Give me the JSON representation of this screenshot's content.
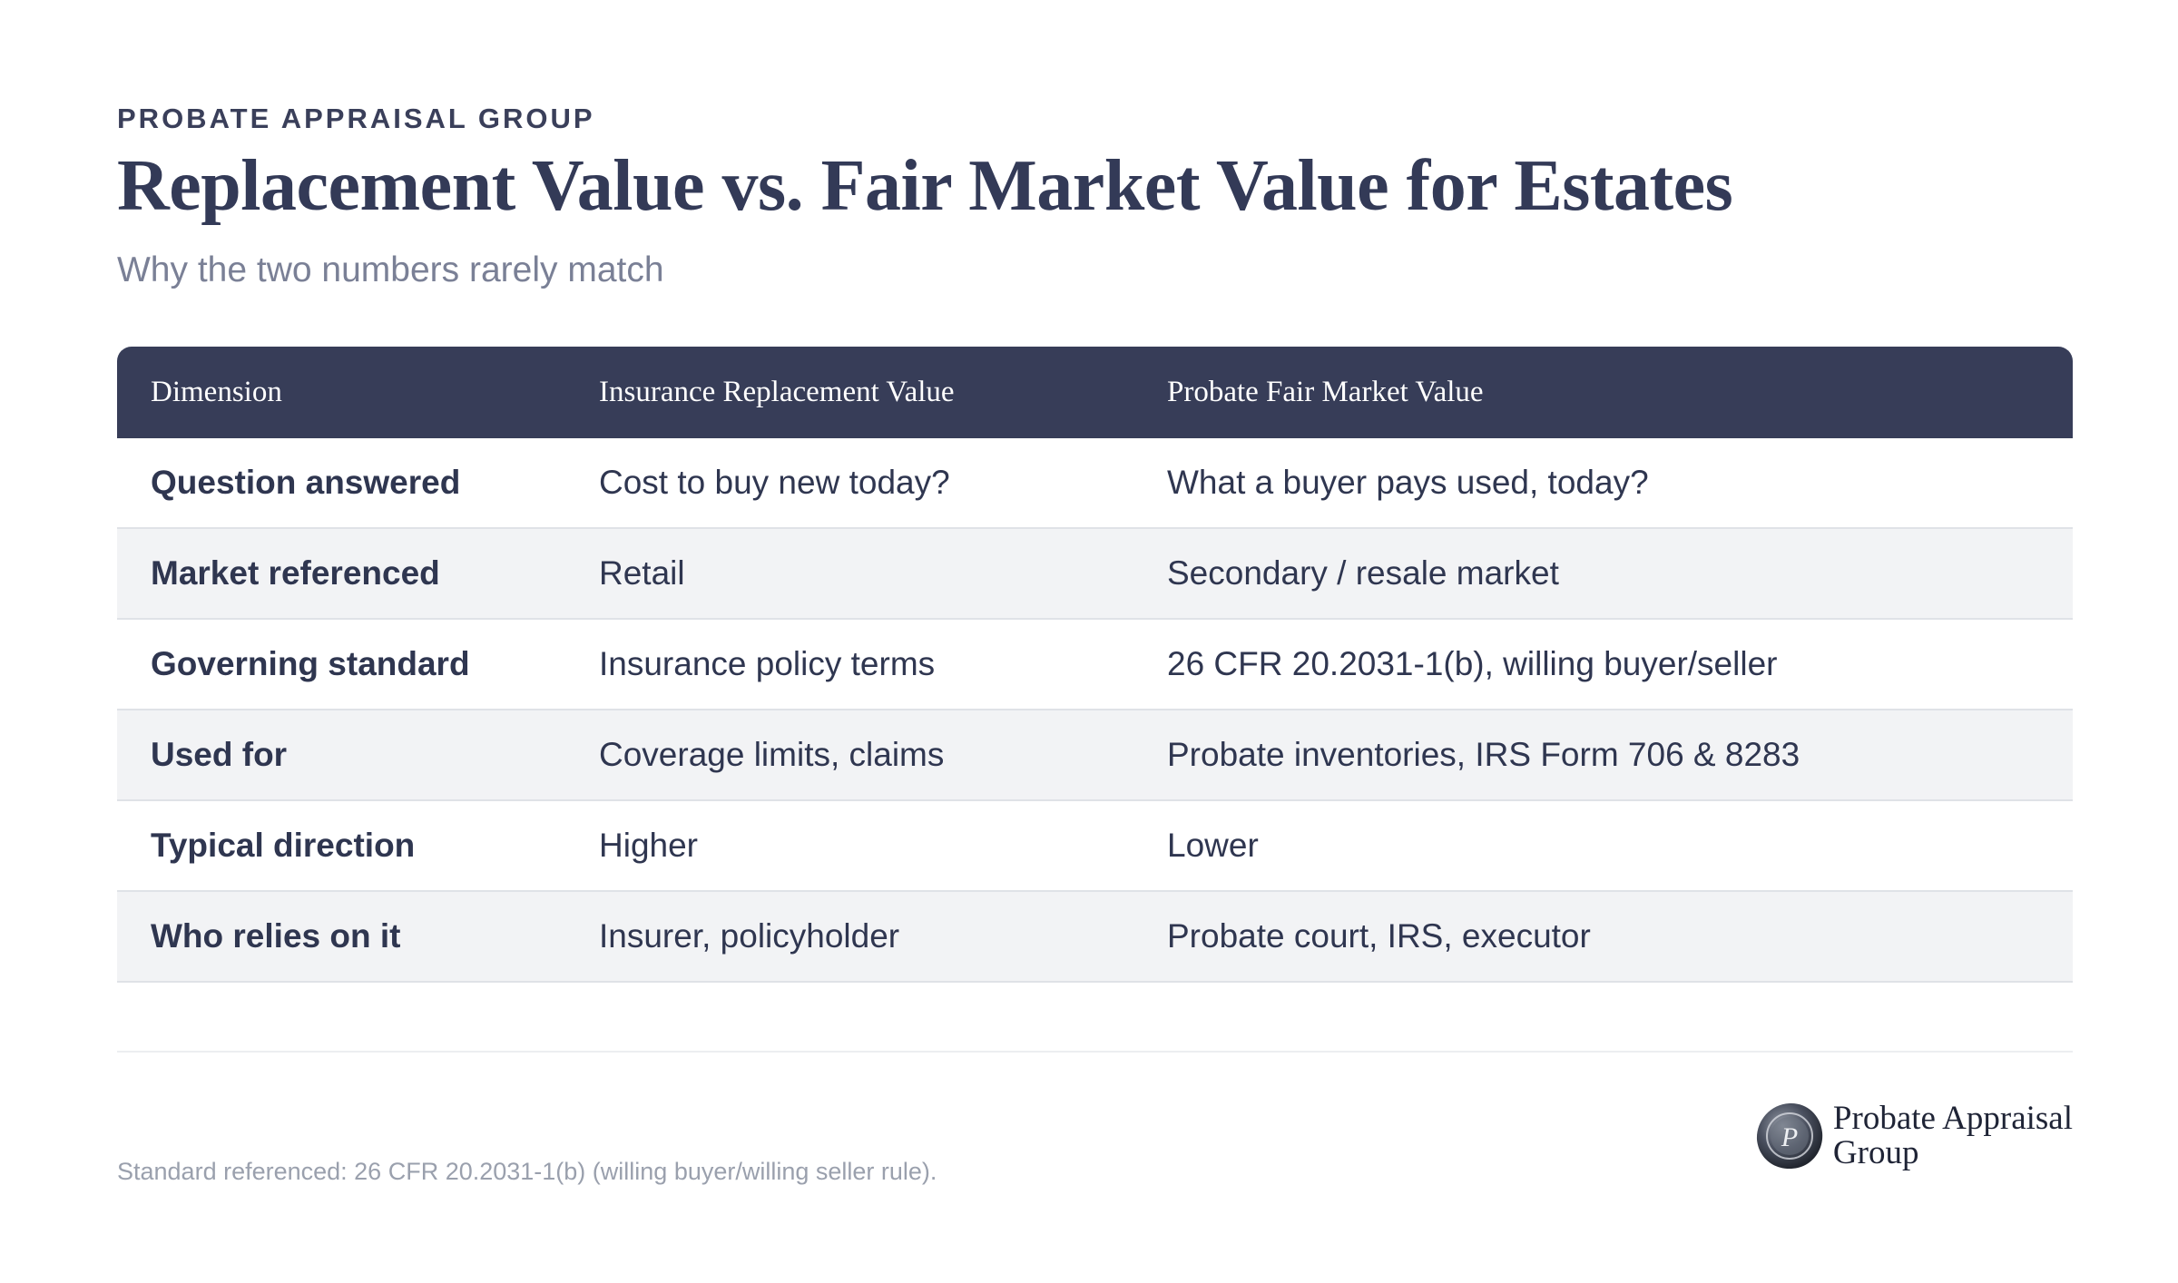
{
  "header": {
    "eyebrow": "PROBATE APPRAISAL GROUP",
    "title": "Replacement Value vs. Fair Market Value for Estates",
    "subtitle": "Why the two numbers rarely match"
  },
  "table": {
    "columns": [
      "Dimension",
      "Insurance Replacement Value",
      "Probate Fair Market Value"
    ],
    "rows": [
      [
        "Question answered",
        "Cost to buy new today?",
        "What a buyer pays used, today?"
      ],
      [
        "Market referenced",
        "Retail",
        "Secondary / resale market"
      ],
      [
        "Governing standard",
        "Insurance policy terms",
        "26 CFR 20.2031-1(b), willing buyer/seller"
      ],
      [
        "Used for",
        "Coverage limits, claims",
        "Probate inventories, IRS Form 706 & 8283"
      ],
      [
        "Typical direction",
        "Higher",
        "Lower"
      ],
      [
        "Who relies on it",
        "Insurer, policyholder",
        "Probate court, IRS, executor"
      ]
    ]
  },
  "footer": {
    "note": "Standard referenced: 26 CFR 20.2031-1(b) (willing buyer/willing seller rule).",
    "brand_line1": "Probate Appraisal",
    "brand_line2": "Group",
    "seal_letter": "P"
  },
  "colors": {
    "header_bg": "#373d58",
    "title": "#333a57",
    "alt_row": "#f2f3f5"
  }
}
